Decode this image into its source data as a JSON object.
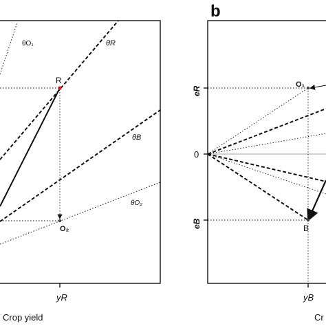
{
  "panel_a": {
    "line_labels": {
      "theta_o1": "θO₁",
      "theta_r": "θR",
      "theta_b": "θB",
      "theta_o2": "θO₂"
    },
    "points": {
      "r": "R",
      "o2": "O₂"
    },
    "x_tick": "yR",
    "x_axis_label": "Crop yield"
  },
  "panel_b": {
    "panel_letter": "b",
    "y_ticks": {
      "e_r": "eR",
      "zero": "0",
      "e_b": "eB"
    },
    "points": {
      "o1": "O₁",
      "b": "B"
    },
    "x_tick": "yB",
    "x_axis_label_fragment": "Cr"
  },
  "colors": {
    "point_r": "#d62020",
    "ink": "#111111"
  }
}
